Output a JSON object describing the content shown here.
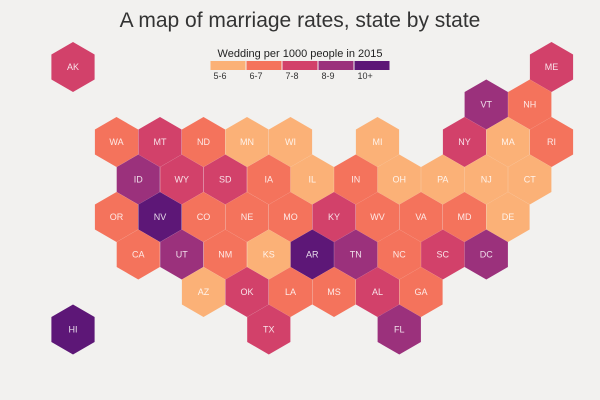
{
  "title": "A map of marriage rates, state by state",
  "legend": {
    "title": "Wedding per 1000 people in 2015",
    "bins": [
      {
        "label": "5-6",
        "color": "#fbb177"
      },
      {
        "label": "6-7",
        "color": "#f4735c"
      },
      {
        "label": "7-8",
        "color": "#d2416a"
      },
      {
        "label": "8-9",
        "color": "#9b317c"
      },
      {
        "label": "10+",
        "color": "#5d1777"
      }
    ]
  },
  "states": [
    {
      "abbr": "AK",
      "row": 0,
      "col": 0,
      "bin": 2
    },
    {
      "abbr": "ME",
      "row": 0,
      "col": 11,
      "bin": 2
    },
    {
      "abbr": "VT",
      "row": 1,
      "col": 9.5,
      "bin": 3
    },
    {
      "abbr": "NH",
      "row": 1,
      "col": 10.5,
      "bin": 1
    },
    {
      "abbr": "WA",
      "row": 2,
      "col": 1,
      "bin": 1
    },
    {
      "abbr": "MT",
      "row": 2,
      "col": 2,
      "bin": 2
    },
    {
      "abbr": "ND",
      "row": 2,
      "col": 3,
      "bin": 1
    },
    {
      "abbr": "MN",
      "row": 2,
      "col": 4,
      "bin": 0
    },
    {
      "abbr": "WI",
      "row": 2,
      "col": 5,
      "bin": 0
    },
    {
      "abbr": "MI",
      "row": 2,
      "col": 7,
      "bin": 0
    },
    {
      "abbr": "NY",
      "row": 2,
      "col": 9,
      "bin": 2
    },
    {
      "abbr": "MA",
      "row": 2,
      "col": 10,
      "bin": 0
    },
    {
      "abbr": "RI",
      "row": 2,
      "col": 11,
      "bin": 1
    },
    {
      "abbr": "ID",
      "row": 3,
      "col": 1.5,
      "bin": 3
    },
    {
      "abbr": "WY",
      "row": 3,
      "col": 2.5,
      "bin": 2
    },
    {
      "abbr": "SD",
      "row": 3,
      "col": 3.5,
      "bin": 2
    },
    {
      "abbr": "IA",
      "row": 3,
      "col": 4.5,
      "bin": 1
    },
    {
      "abbr": "IL",
      "row": 3,
      "col": 5.5,
      "bin": 0
    },
    {
      "abbr": "IN",
      "row": 3,
      "col": 6.5,
      "bin": 1
    },
    {
      "abbr": "OH",
      "row": 3,
      "col": 7.5,
      "bin": 0
    },
    {
      "abbr": "PA",
      "row": 3,
      "col": 8.5,
      "bin": 0
    },
    {
      "abbr": "NJ",
      "row": 3,
      "col": 9.5,
      "bin": 0
    },
    {
      "abbr": "CT",
      "row": 3,
      "col": 10.5,
      "bin": 0
    },
    {
      "abbr": "OR",
      "row": 4,
      "col": 1,
      "bin": 1
    },
    {
      "abbr": "NV",
      "row": 4,
      "col": 2,
      "bin": 4
    },
    {
      "abbr": "CO",
      "row": 4,
      "col": 3,
      "bin": 1
    },
    {
      "abbr": "NE",
      "row": 4,
      "col": 4,
      "bin": 1
    },
    {
      "abbr": "MO",
      "row": 4,
      "col": 5,
      "bin": 1
    },
    {
      "abbr": "KY",
      "row": 4,
      "col": 6,
      "bin": 2
    },
    {
      "abbr": "WV",
      "row": 4,
      "col": 7,
      "bin": 1
    },
    {
      "abbr": "VA",
      "row": 4,
      "col": 8,
      "bin": 1
    },
    {
      "abbr": "MD",
      "row": 4,
      "col": 9,
      "bin": 1
    },
    {
      "abbr": "DE",
      "row": 4,
      "col": 10,
      "bin": 0
    },
    {
      "abbr": "CA",
      "row": 5,
      "col": 1.5,
      "bin": 1
    },
    {
      "abbr": "UT",
      "row": 5,
      "col": 2.5,
      "bin": 3
    },
    {
      "abbr": "NM",
      "row": 5,
      "col": 3.5,
      "bin": 1
    },
    {
      "abbr": "KS",
      "row": 5,
      "col": 4.5,
      "bin": 0
    },
    {
      "abbr": "AR",
      "row": 5,
      "col": 5.5,
      "bin": 4
    },
    {
      "abbr": "TN",
      "row": 5,
      "col": 6.5,
      "bin": 3
    },
    {
      "abbr": "NC",
      "row": 5,
      "col": 7.5,
      "bin": 1
    },
    {
      "abbr": "SC",
      "row": 5,
      "col": 8.5,
      "bin": 2
    },
    {
      "abbr": "DC",
      "row": 5,
      "col": 9.5,
      "bin": 3
    },
    {
      "abbr": "AZ",
      "row": 6,
      "col": 3,
      "bin": 0
    },
    {
      "abbr": "OK",
      "row": 6,
      "col": 4,
      "bin": 2
    },
    {
      "abbr": "LA",
      "row": 6,
      "col": 5,
      "bin": 1
    },
    {
      "abbr": "MS",
      "row": 6,
      "col": 6,
      "bin": 1
    },
    {
      "abbr": "AL",
      "row": 6,
      "col": 7,
      "bin": 2
    },
    {
      "abbr": "GA",
      "row": 6,
      "col": 8,
      "bin": 1
    },
    {
      "abbr": "HI",
      "row": 7,
      "col": 0,
      "bin": 4
    },
    {
      "abbr": "TX",
      "row": 7,
      "col": 4.5,
      "bin": 2
    },
    {
      "abbr": "FL",
      "row": 7,
      "col": 7.5,
      "bin": 3
    }
  ]
}
